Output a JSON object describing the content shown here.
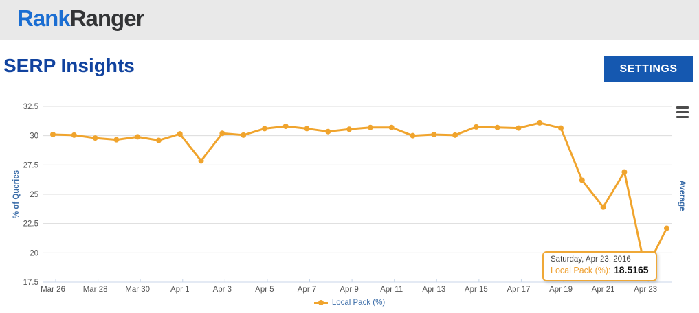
{
  "header": {
    "logo_part1": "Rank",
    "logo_part2": "Ranger"
  },
  "page": {
    "title": "SERP Insights",
    "settings_label": "SETTINGS"
  },
  "chart_data": {
    "type": "line",
    "title": "",
    "ylabel": "% of Queries",
    "right_axis_label": "Average",
    "ylim": [
      17.5,
      32.5
    ],
    "yticks": [
      32.5,
      30,
      27.5,
      25,
      22.5,
      20,
      17.5
    ],
    "grid": true,
    "legend_position": "bottom",
    "x": [
      "Mar 26",
      "Mar 27",
      "Mar 28",
      "Mar 29",
      "Mar 30",
      "Mar 31",
      "Apr 1",
      "Apr 2",
      "Apr 3",
      "Apr 4",
      "Apr 5",
      "Apr 6",
      "Apr 7",
      "Apr 8",
      "Apr 9",
      "Apr 10",
      "Apr 11",
      "Apr 12",
      "Apr 13",
      "Apr 14",
      "Apr 15",
      "Apr 16",
      "Apr 17",
      "Apr 18",
      "Apr 19",
      "Apr 20",
      "Apr 21",
      "Apr 22",
      "Apr 23",
      "Apr 24"
    ],
    "x_tick_every": 2,
    "series": [
      {
        "name": "Local Pack (%)",
        "color": "#f0a42d",
        "values": [
          30.1,
          30.05,
          29.8,
          29.65,
          29.9,
          29.6,
          30.15,
          27.85,
          30.2,
          30.05,
          30.6,
          30.8,
          30.6,
          30.35,
          30.55,
          30.7,
          30.7,
          30.0,
          30.1,
          30.05,
          30.75,
          30.7,
          30.65,
          31.1,
          30.65,
          26.2,
          23.9,
          26.9,
          18.5165,
          22.1
        ]
      }
    ],
    "highlight": {
      "index": 28,
      "label": "Saturday, Apr 23, 2016",
      "value": 18.5165
    },
    "colors": {
      "gridline": "#dcdcdc",
      "axis_line": "#c8d6e8",
      "tick": "#c8d6e8",
      "axis_text": "#555555",
      "axis_title_blue": "#3a6ca8"
    }
  },
  "tooltip": {
    "date_line": "Saturday, Apr 23, 2016",
    "series_label": "Local Pack (%):",
    "value": "18.5165"
  },
  "legend": {
    "label": "Local Pack (%)"
  }
}
